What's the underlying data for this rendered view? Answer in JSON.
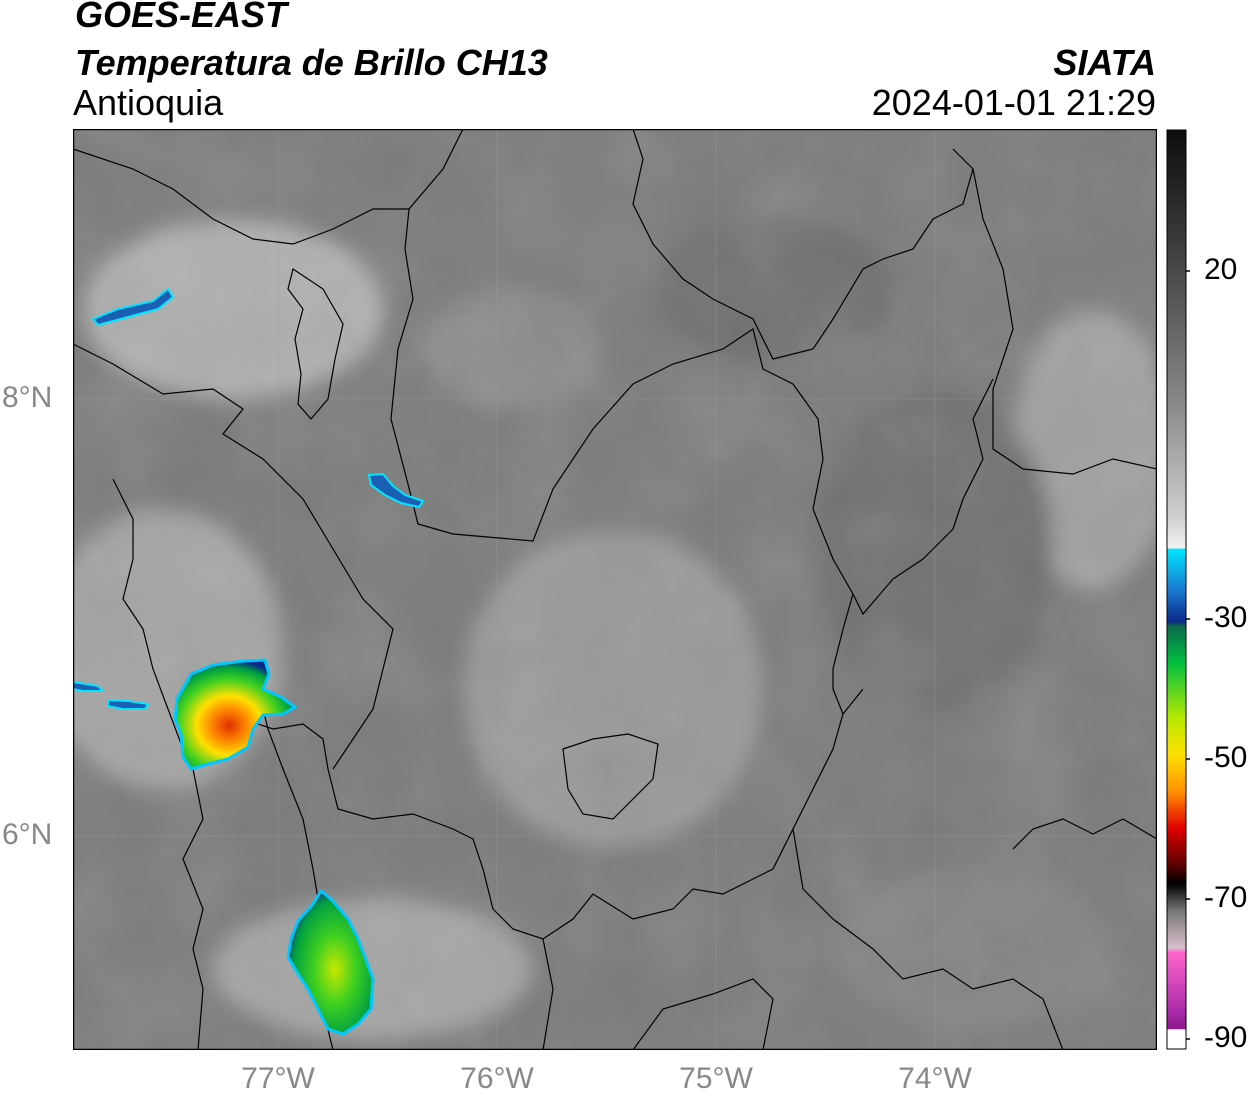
{
  "header": {
    "satellite": "GOES-EAST",
    "product": "Temperatura de Brillo CH13",
    "region": "Antioquia",
    "organization": "SIATA",
    "datetime": "2024-01-01 21:29"
  },
  "map": {
    "lat_labels": [
      "8°N",
      "6°N"
    ],
    "lon_labels": [
      "77°W",
      "76°W",
      "75°W",
      "74°W"
    ],
    "extent": {
      "lon": [
        -77.95,
        -73.0
      ],
      "lat": [
        5.0,
        9.2
      ]
    }
  },
  "colorbar": {
    "ticks": [
      "20",
      "-30",
      "-50",
      "-70",
      "-90"
    ],
    "range": [
      -90,
      40
    ],
    "colors": {
      "warm_dark": "#111111",
      "mid_gray": "#808080",
      "white": "#f2f2f2",
      "cyan": "#00e5ff",
      "blue": "#0a2a8a",
      "green": "#00c040",
      "yellow": "#ffe000",
      "orange": "#ff7a00",
      "red": "#e00000",
      "black": "#000000",
      "pink": "#ff66cc",
      "purple": "#8a1a8a"
    }
  }
}
